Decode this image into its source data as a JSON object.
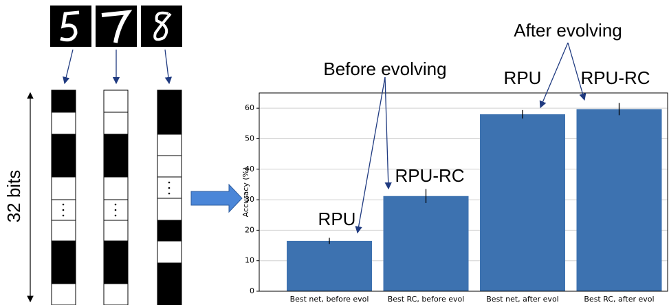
{
  "diagram": {
    "label": "32 bits"
  },
  "chart_data": {
    "type": "bar",
    "categories": [
      "Best net, before evol",
      "Best RC, before evol",
      "Best net, after evol",
      "Best RC, after evol"
    ],
    "values": [
      16.5,
      31.2,
      58.0,
      59.7
    ],
    "errors": [
      1.0,
      2.3,
      1.4,
      2.0
    ],
    "color": "#3d72b0",
    "ylabel": "Accuracy (%)",
    "ylim": [
      0,
      65
    ],
    "yticks": [
      0,
      10,
      20,
      30,
      40,
      50,
      60
    ],
    "grid": true,
    "annotations": [
      "Before evolving",
      "After evolving",
      "RPU",
      "RPU-RC",
      "RPU",
      "RPU-RC"
    ]
  }
}
